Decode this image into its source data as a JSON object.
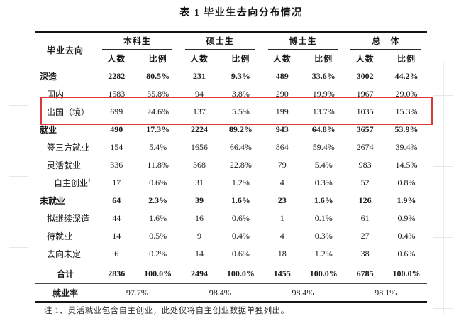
{
  "title": "表 1 毕业生去向分布情况",
  "highlight_color": "#dd3636",
  "table": {
    "row_header": "毕业去向",
    "groups": [
      {
        "label": "本科生",
        "sub": [
          "人数",
          "比例"
        ]
      },
      {
        "label": "硕士生",
        "sub": [
          "人数",
          "比例"
        ]
      },
      {
        "label": "博士生",
        "sub": [
          "人数",
          "比例"
        ]
      },
      {
        "label": "总　体",
        "sub": [
          "人数",
          "比例"
        ]
      }
    ],
    "rows": [
      {
        "label": "深造",
        "indent": 0,
        "bold": true,
        "highlight": false,
        "values": [
          "2282",
          "80.5%",
          "231",
          "9.3%",
          "489",
          "33.6%",
          "3002",
          "44.2%"
        ]
      },
      {
        "label": "国内",
        "indent": 1,
        "bold": false,
        "highlight": false,
        "values": [
          "1583",
          "55.8%",
          "94",
          "3.8%",
          "290",
          "19.9%",
          "1967",
          "29.0%"
        ]
      },
      {
        "label": "出国（境）",
        "indent": 1,
        "bold": false,
        "highlight": true,
        "values": [
          "699",
          "24.6%",
          "137",
          "5.5%",
          "199",
          "13.7%",
          "1035",
          "15.3%"
        ]
      },
      {
        "label": "就业",
        "indent": 0,
        "bold": true,
        "highlight": false,
        "values": [
          "490",
          "17.3%",
          "2224",
          "89.2%",
          "943",
          "64.8%",
          "3657",
          "53.9%"
        ]
      },
      {
        "label": "签三方就业",
        "indent": 1,
        "bold": false,
        "highlight": false,
        "values": [
          "154",
          "5.4%",
          "1656",
          "66.4%",
          "864",
          "59.4%",
          "2674",
          "39.4%"
        ]
      },
      {
        "label": "灵活就业",
        "indent": 1,
        "bold": false,
        "highlight": false,
        "values": [
          "336",
          "11.8%",
          "568",
          "22.8%",
          "79",
          "5.4%",
          "983",
          "14.5%"
        ]
      },
      {
        "label": "自主创业",
        "sup": "1",
        "indent": 2,
        "bold": false,
        "highlight": false,
        "values": [
          "17",
          "0.6%",
          "31",
          "1.2%",
          "4",
          "0.3%",
          "52",
          "0.8%"
        ]
      },
      {
        "label": "未就业",
        "indent": 0,
        "bold": true,
        "highlight": false,
        "values": [
          "64",
          "2.3%",
          "39",
          "1.6%",
          "23",
          "1.6%",
          "126",
          "1.9%"
        ]
      },
      {
        "label": "拟继续深造",
        "indent": 1,
        "bold": false,
        "highlight": false,
        "values": [
          "44",
          "1.6%",
          "16",
          "0.6%",
          "1",
          "0.1%",
          "61",
          "0.9%"
        ]
      },
      {
        "label": "待就业",
        "indent": 1,
        "bold": false,
        "highlight": false,
        "values": [
          "14",
          "0.5%",
          "9",
          "0.4%",
          "4",
          "0.3%",
          "27",
          "0.4%"
        ]
      },
      {
        "label": "去向未定",
        "indent": 1,
        "bold": false,
        "highlight": false,
        "values": [
          "6",
          "0.2%",
          "14",
          "0.6%",
          "18",
          "1.2%",
          "38",
          "0.6%"
        ]
      }
    ],
    "total_row": {
      "label": "合计",
      "values": [
        "2836",
        "100.0%",
        "2494",
        "100.0%",
        "1455",
        "100.0%",
        "6785",
        "100.0%"
      ]
    },
    "rate_row": {
      "label": "就业率",
      "values": [
        "97.7%",
        "98.4%",
        "98.4%",
        "98.1%"
      ]
    }
  },
  "footnote": "注 1、灵活就业包含自主创业，此处仅将自主创业数据单独列出。"
}
